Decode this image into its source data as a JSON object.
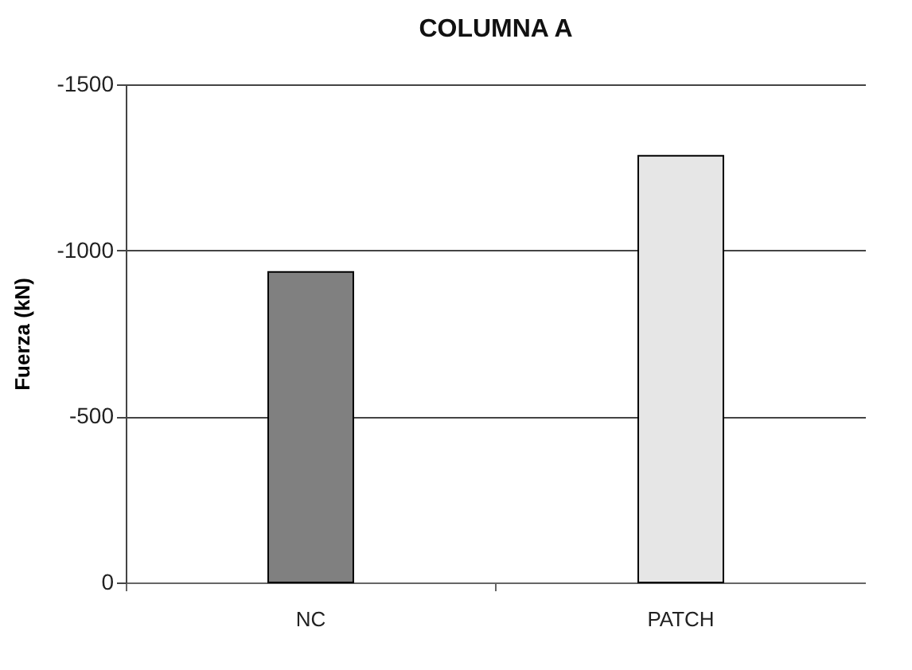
{
  "chart_data": {
    "type": "bar",
    "title": "COLUMNA A",
    "ylabel": "Fuerza  (kN)",
    "categories": [
      "NC",
      "PATCH"
    ],
    "values": [
      -935,
      -1285
    ],
    "colors": [
      "#808080",
      "#e6e6e6"
    ],
    "ylim": [
      0,
      -1500
    ],
    "yticks": [
      0,
      -500,
      -1000,
      -1500
    ],
    "grid": "y"
  }
}
